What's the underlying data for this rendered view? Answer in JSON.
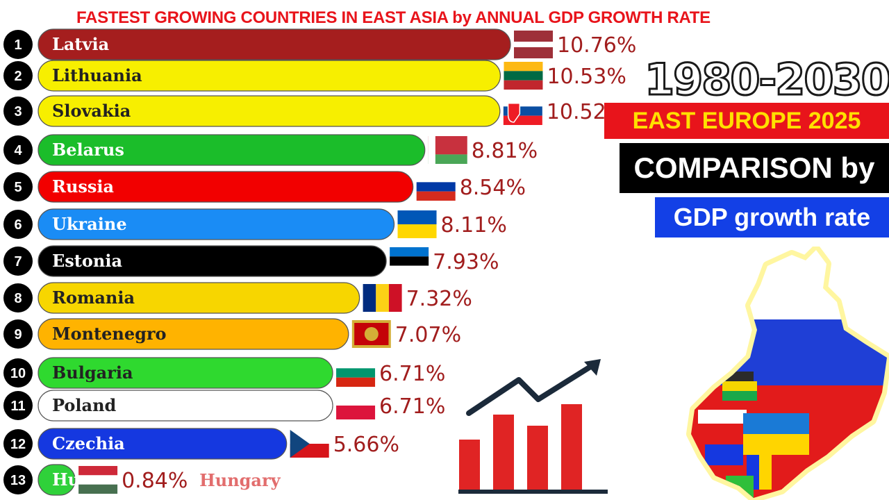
{
  "title": "FASTEST GROWING COUNTRIES IN EAST ASIA by ANNUAL GDP GROWTH RATE",
  "side_panel": {
    "years": "1980-2030",
    "region": "EAST EUROPE 2025",
    "comparison": "COMPARISON by",
    "metric": "GDP growth rate"
  },
  "chart_data": {
    "type": "bar",
    "orientation": "horizontal",
    "title": "FASTEST GROWING COUNTRIES IN EAST ASIA by ANNUAL GDP GROWTH RATE",
    "value_suffix": "%",
    "categories": [
      "Latvia",
      "Lithuania",
      "Slovakia",
      "Belarus",
      "Russia",
      "Ukraine",
      "Estonia",
      "Romania",
      "Montenegro",
      "Bulgaria",
      "Poland",
      "Czechia",
      "Hungary"
    ],
    "ranks": [
      "1",
      "2",
      "3",
      "4",
      "5",
      "6",
      "7",
      "8",
      "9",
      "10",
      "11",
      "12",
      "13"
    ],
    "values": [
      10.76,
      10.53,
      10.52,
      8.81,
      8.54,
      8.11,
      7.93,
      7.32,
      7.07,
      6.71,
      6.71,
      5.66,
      0.84
    ],
    "value_labels": [
      "10.76%",
      "10.53%",
      "10.52",
      "8.81%",
      "8.54%",
      "8.11%",
      "7.93%",
      "7.32%",
      "7.07%",
      "6.71%",
      "6.71%",
      "5.66%",
      "0.84%"
    ],
    "bar_labels": [
      "Latvia",
      "Lithuania",
      "Slovakia",
      "Belarus",
      "Russia",
      "Ukraine",
      "Estonia",
      "Romania",
      "Montenegro",
      "Bulgaria",
      "Poland",
      "Czechia",
      "Hu"
    ],
    "outside_name_labels": [
      "",
      "",
      "",
      "",
      "",
      "",
      "",
      "",
      "",
      "",
      "",
      "",
      "Hungary"
    ],
    "colors": [
      "#a51e1e",
      "#f7ef00",
      "#f7ef00",
      "#1bbd2a",
      "#f20000",
      "#1a8cf5",
      "#000000",
      "#f7d600",
      "#ffb300",
      "#2fd92f",
      "#ffffff",
      "#1538e0",
      "#2fd13a"
    ],
    "label_colors": [
      "#ffffff",
      "#222222",
      "#222222",
      "#ffffff",
      "#ffffff",
      "#ffffff",
      "#ffffff",
      "#222222",
      "#222222",
      "#222222",
      "#222222",
      "#ffffff",
      "#ffffff"
    ],
    "flags": [
      "latvia",
      "lithuania",
      "slovakia",
      "belarus",
      "russia",
      "ukraine",
      "estonia",
      "romania",
      "montenegro",
      "bulgaria",
      "poland",
      "czechia",
      "hungary"
    ]
  }
}
